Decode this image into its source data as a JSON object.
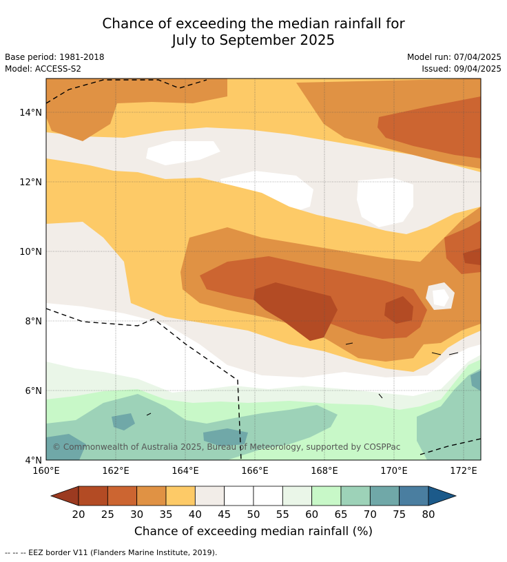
{
  "title_line1": "Chance of exceeding the median rainfall for",
  "title_line2": "July to September 2025",
  "meta_left": [
    "Base period: 1981-2018",
    "Model: ACCESS-S2"
  ],
  "meta_right": [
    "Model run: 07/04/2025",
    "Issued: 09/04/2025"
  ],
  "copyright": "© Commonwealth of Australia 2025, Bureau of Meteorology, supported by COSPPac",
  "lat_labels": [
    "14°N",
    "12°N",
    "10°N",
    "8°N",
    "6°N",
    "4°N"
  ],
  "lon_labels": [
    "160°E",
    "162°E",
    "164°E",
    "166°E",
    "168°E",
    "170°E",
    "172°E"
  ],
  "colorbar": {
    "title": "Chance of exceeding median rainfall (%)",
    "ticks": [
      "20",
      "25",
      "30",
      "35",
      "40",
      "45",
      "50",
      "55",
      "60",
      "65",
      "70",
      "75",
      "80"
    ],
    "colors": [
      "#9b3a20",
      "#b34b24",
      "#cc6531",
      "#e09244",
      "#fdca67",
      "#f2ede8",
      "#ffffff",
      "#ffffff",
      "#eaf6e8",
      "#c8f8c8",
      "#9dd2b8",
      "#70a8a8",
      "#4a7ea0",
      "#1c5a8a"
    ]
  },
  "footer": "-- -- -- EEZ border V11 (Flanders Marine Institute, 2019)."
}
